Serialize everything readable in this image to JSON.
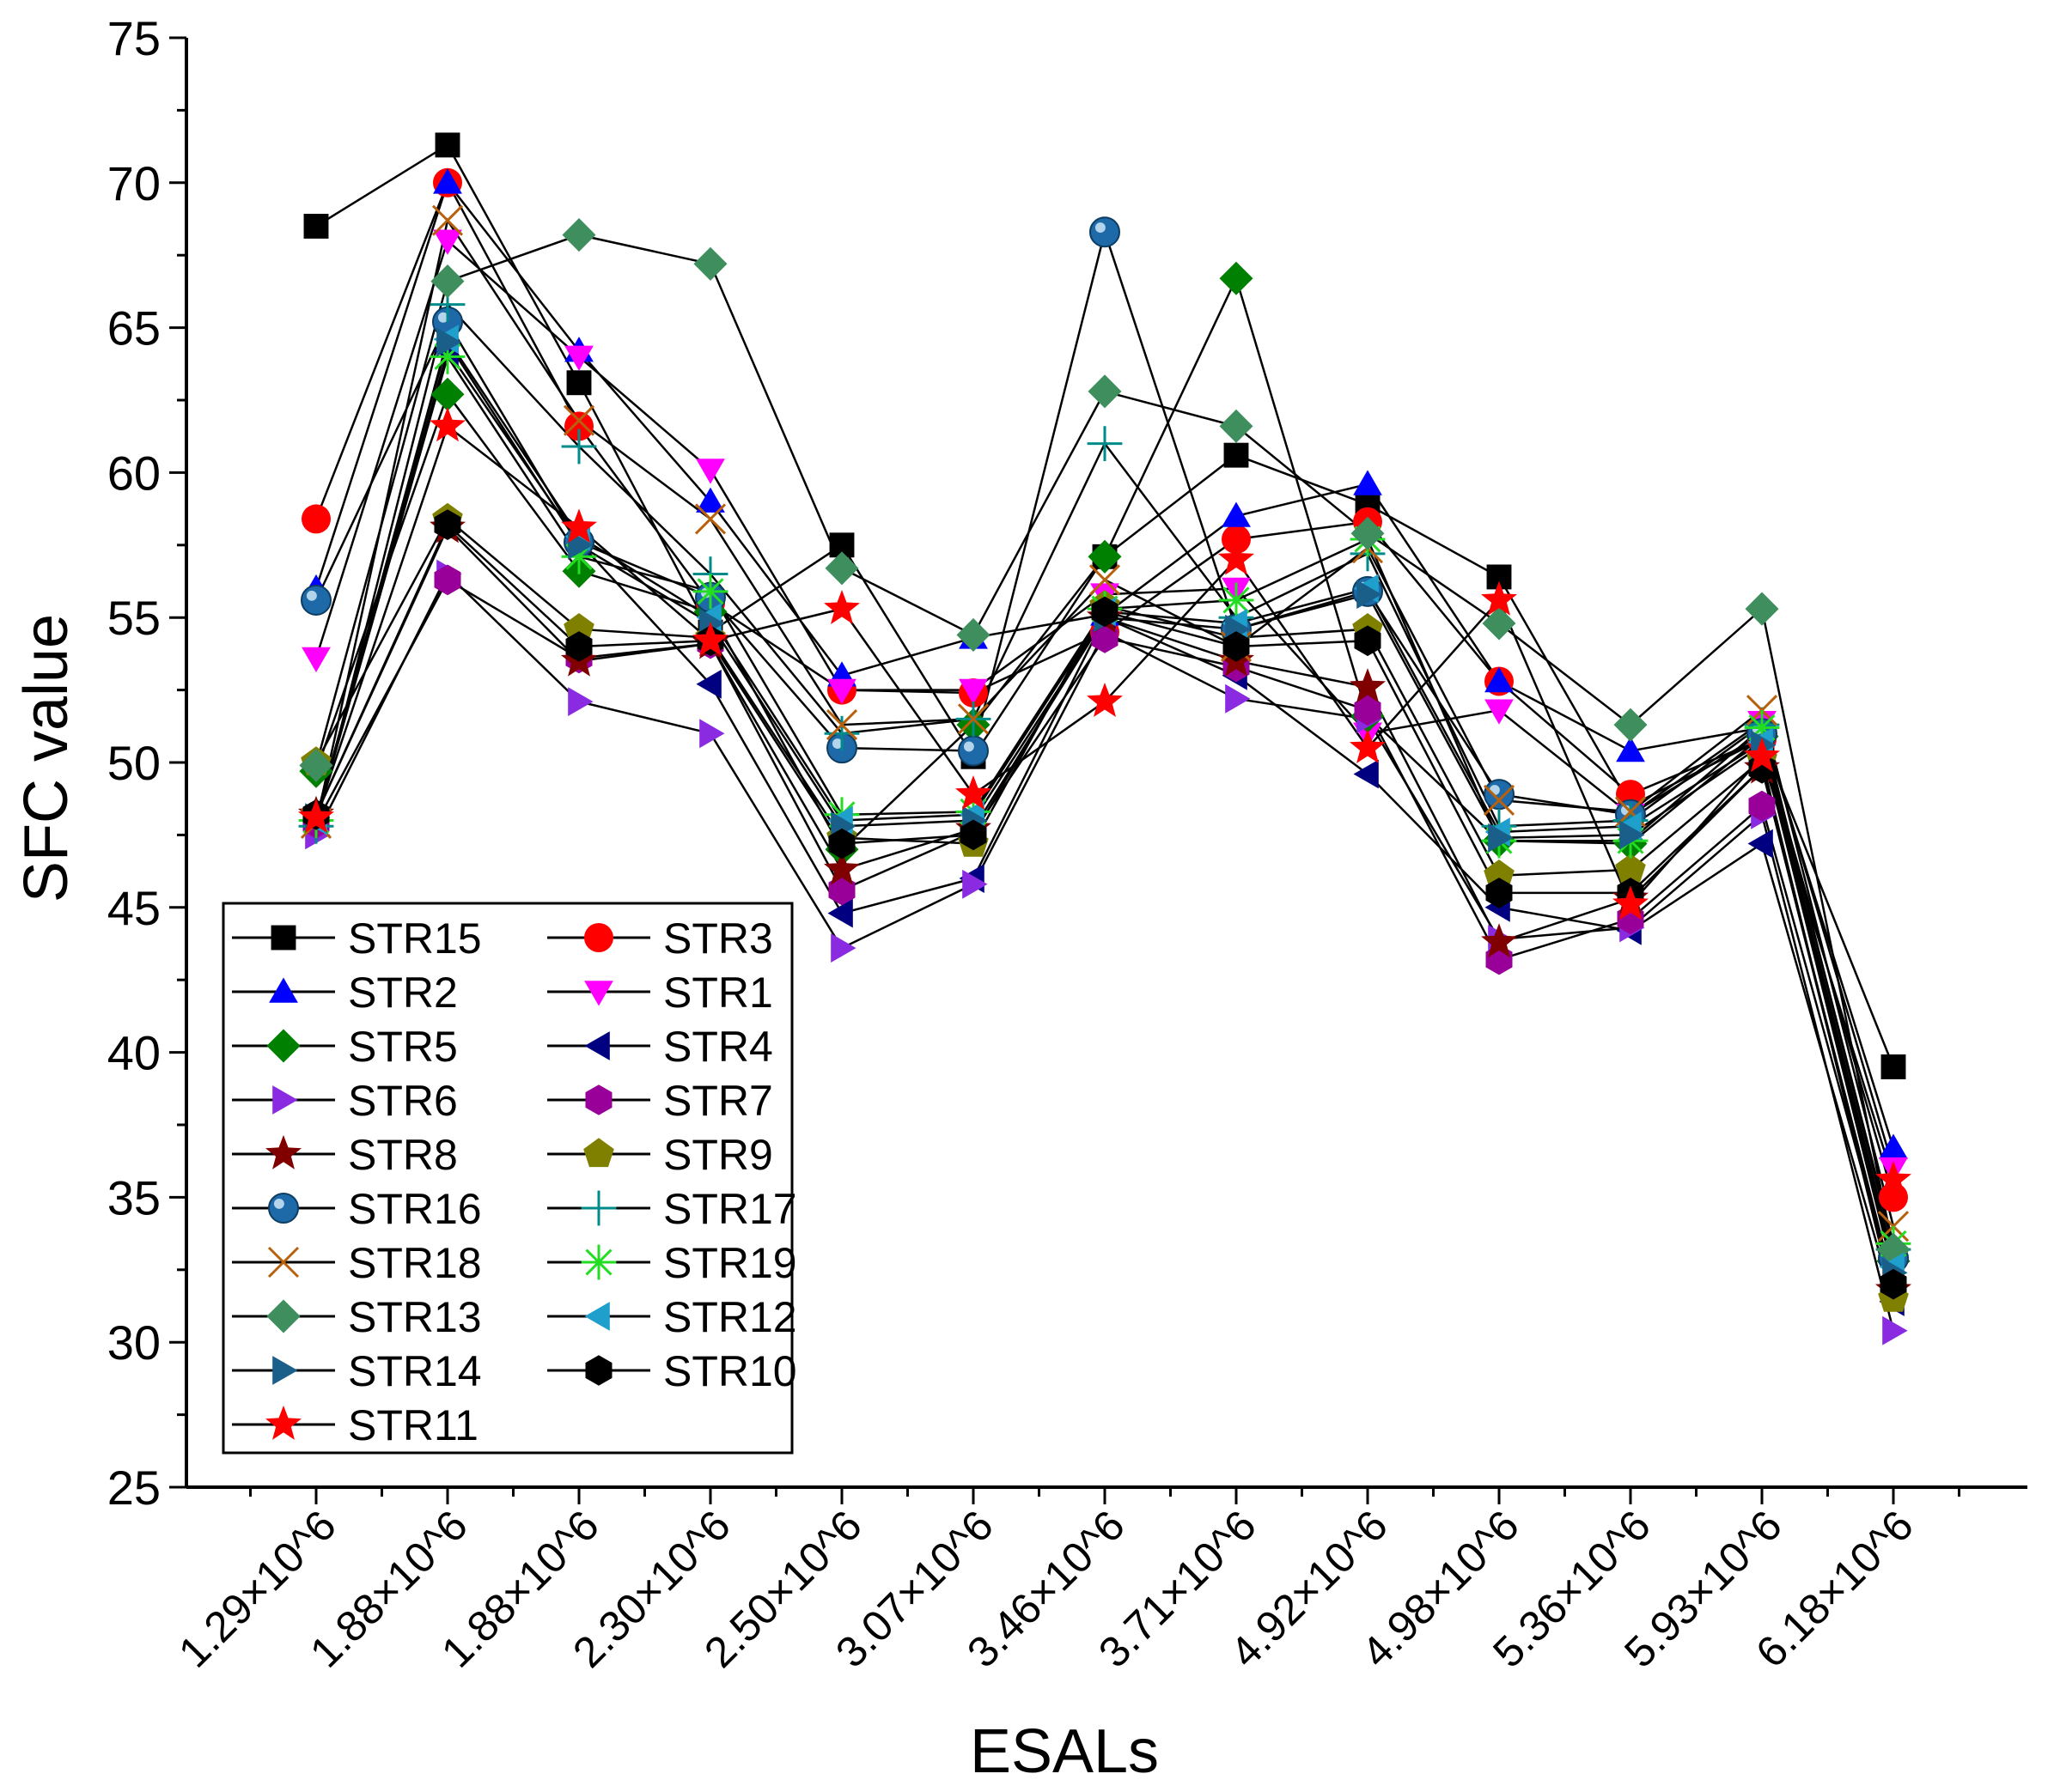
{
  "chart_data": {
    "type": "line",
    "xlabel": "ESALs",
    "ylabel": "SFC value",
    "ylim": [
      25,
      75
    ],
    "yticks": [
      25,
      30,
      35,
      40,
      45,
      50,
      55,
      60,
      65,
      70,
      75
    ],
    "categories": [
      "1.29×10^6",
      "1.88×10^6",
      "1.88×10^6",
      "2.30×10^6",
      "2.50×10^6",
      "3.07×10^6",
      "3.46×10^6",
      "3.71×10^6",
      "4.92×10^6",
      "4.98×10^6",
      "5.36×10^6",
      "5.93×10^6",
      "6.18×10^6"
    ],
    "legend_position": "bottom-left",
    "series": [
      {
        "name": "STR15",
        "marker": "square",
        "color": "#000000",
        "values": [
          68.5,
          71.3,
          63.1,
          54.5,
          57.5,
          50.2,
          57.1,
          60.6,
          58.9,
          56.4,
          48.5,
          50.8,
          39.5
        ]
      },
      {
        "name": "STR3",
        "marker": "circle",
        "color": "#ff0000",
        "values": [
          58.4,
          70.0,
          61.6,
          55.5,
          52.5,
          52.4,
          54.5,
          57.7,
          58.3,
          52.8,
          48.9,
          50.8,
          35.0
        ]
      },
      {
        "name": "STR2",
        "marker": "triangle-up",
        "color": "#0000ff",
        "values": [
          56.0,
          70.0,
          64.2,
          59.0,
          53.0,
          54.3,
          55.1,
          58.5,
          59.6,
          52.8,
          50.4,
          51.2,
          36.7
        ]
      },
      {
        "name": "STR1",
        "marker": "triangle-down",
        "color": "#ff00ff",
        "values": [
          53.6,
          68.0,
          64.0,
          60.1,
          52.5,
          52.5,
          55.8,
          56.0,
          51.0,
          51.8,
          48.2,
          51.4,
          36.0
        ]
      },
      {
        "name": "STR5",
        "marker": "diamond",
        "color": "#008000",
        "values": [
          49.7,
          62.7,
          56.6,
          55.2,
          47.0,
          51.3,
          57.1,
          66.7,
          51.6,
          47.3,
          47.2,
          50.9,
          32.8
        ]
      },
      {
        "name": "STR4",
        "marker": "triangle-left",
        "color": "#000080",
        "values": [
          48.0,
          64.2,
          57.6,
          52.7,
          44.8,
          46.0,
          55.0,
          53.0,
          49.6,
          45.0,
          44.2,
          47.2,
          31.4
        ]
      },
      {
        "name": "STR6",
        "marker": "triangle-right",
        "color": "#8a2be2",
        "values": [
          47.5,
          56.5,
          52.1,
          51.0,
          43.6,
          45.8,
          54.5,
          52.2,
          51.5,
          43.9,
          44.3,
          48.2,
          30.4
        ]
      },
      {
        "name": "STR7",
        "marker": "hexagon",
        "color": "#990099",
        "values": [
          47.9,
          56.3,
          53.6,
          54.1,
          45.6,
          47.6,
          54.3,
          53.3,
          51.8,
          43.2,
          44.6,
          48.5,
          32.0
        ]
      },
      {
        "name": "STR8",
        "marker": "star",
        "color": "#800000",
        "values": [
          48.2,
          58.1,
          53.5,
          54.1,
          46.3,
          47.7,
          55.0,
          53.5,
          52.6,
          43.8,
          45.3,
          49.8,
          31.8
        ]
      },
      {
        "name": "STR9",
        "marker": "pentagon",
        "color": "#808000",
        "values": [
          50.0,
          58.4,
          54.6,
          54.3,
          47.4,
          47.2,
          55.4,
          54.3,
          54.6,
          46.1,
          46.3,
          50.1,
          31.5
        ]
      },
      {
        "name": "STR16",
        "marker": "sphere",
        "color": "#1e6aa8",
        "values": [
          55.6,
          65.2,
          57.6,
          55.7,
          50.5,
          50.4,
          68.3,
          54.6,
          55.9,
          48.9,
          48.2,
          51.0,
          32.9
        ]
      },
      {
        "name": "STR17",
        "marker": "plus",
        "color": "#008b8b",
        "values": [
          47.8,
          65.8,
          60.9,
          56.5,
          51.0,
          51.5,
          61.0,
          55.0,
          57.2,
          47.8,
          48.0,
          51.3,
          33.2
        ]
      },
      {
        "name": "STR18",
        "marker": "x",
        "color": "#b8600b",
        "values": [
          47.9,
          68.7,
          61.8,
          58.4,
          51.3,
          51.5,
          56.3,
          54.0,
          57.4,
          48.7,
          48.3,
          51.8,
          34.0
        ]
      },
      {
        "name": "STR19",
        "marker": "asterisk",
        "color": "#22dd22",
        "values": [
          48.0,
          64.0,
          57.1,
          55.9,
          48.2,
          48.3,
          55.3,
          55.6,
          57.7,
          47.3,
          47.3,
          51.2,
          33.4
        ]
      },
      {
        "name": "STR13",
        "marker": "diamond",
        "color": "#3e8e5e",
        "values": [
          49.9,
          66.6,
          68.2,
          67.2,
          56.7,
          54.4,
          62.8,
          61.6,
          57.9,
          54.8,
          51.3,
          55.3,
          33.2
        ]
      },
      {
        "name": "STR12",
        "marker": "triangle-left",
        "color": "#1fa0cc",
        "values": [
          48.0,
          64.6,
          57.8,
          55.0,
          48.0,
          48.2,
          55.2,
          54.8,
          56.0,
          47.6,
          47.8,
          50.7,
          32.6
        ]
      },
      {
        "name": "STR14",
        "marker": "triangle-right",
        "color": "#1a5e8a",
        "values": [
          48.1,
          64.5,
          57.5,
          54.8,
          47.8,
          48.0,
          55.0,
          54.6,
          55.8,
          47.4,
          47.5,
          50.6,
          32.4
        ]
      },
      {
        "name": "STR10",
        "marker": "hexagon",
        "color": "#000000",
        "values": [
          48.2,
          58.2,
          54.0,
          54.2,
          47.2,
          47.5,
          55.2,
          54.0,
          54.2,
          45.5,
          45.5,
          49.8,
          32.0
        ]
      },
      {
        "name": "STR11",
        "marker": "star",
        "color": "#ff0000",
        "values": [
          48.1,
          61.6,
          58.1,
          54.2,
          55.3,
          48.9,
          52.1,
          57.0,
          50.5,
          55.6,
          45.1,
          50.2,
          35.6
        ]
      }
    ]
  }
}
